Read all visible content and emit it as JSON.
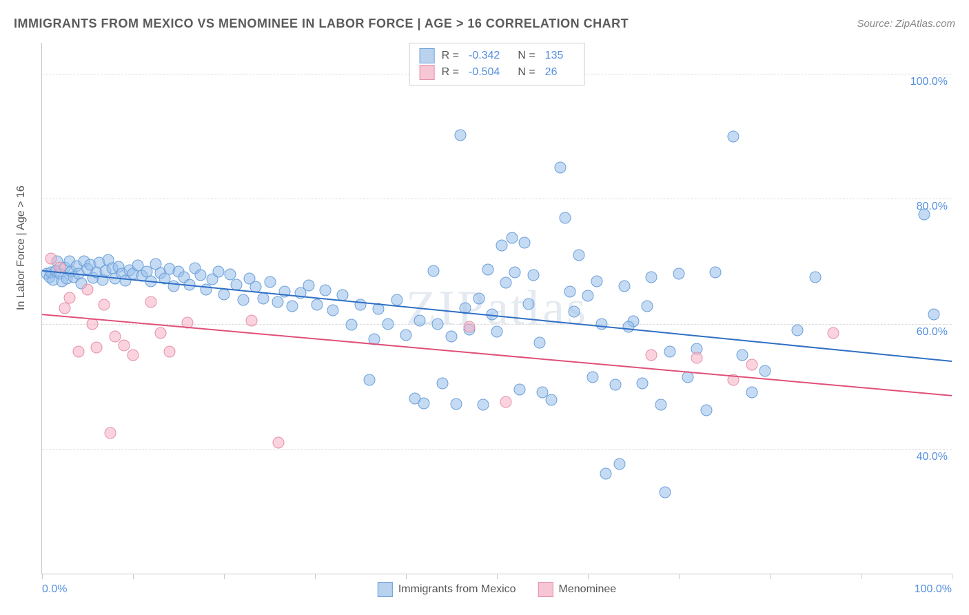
{
  "title": "IMMIGRANTS FROM MEXICO VS MENOMINEE IN LABOR FORCE | AGE > 16 CORRELATION CHART",
  "source": "Source: ZipAtlas.com",
  "ylabel": "In Labor Force | Age > 16",
  "watermark": "ZIPatlas",
  "chart": {
    "type": "scatter",
    "xlim": [
      0,
      100
    ],
    "ylim": [
      20,
      105
    ],
    "ytick_values": [
      40,
      60,
      80,
      100
    ],
    "ytick_labels": [
      "40.0%",
      "60.0%",
      "80.0%",
      "100.0%"
    ],
    "xtick_values": [
      0,
      10,
      20,
      30,
      40,
      50,
      60,
      70,
      80,
      90,
      100
    ],
    "xtick_end_labels": {
      "0": "0.0%",
      "100": "100.0%"
    },
    "background_color": "#ffffff",
    "grid_color": "#dcdcdc",
    "axis_color": "#c8c8c8",
    "tick_label_color": "#558fe0",
    "series": [
      {
        "name": "Immigrants from Mexico",
        "marker_fill": "rgba(150,190,235,0.55)",
        "marker_stroke": "#6b9fd8",
        "marker_size": 15,
        "line_color": "#2f6fc4",
        "line_width": 2,
        "trend": {
          "x1": 0,
          "y1": 68.5,
          "x2": 100,
          "y2": 54
        },
        "R": "-0.342",
        "N": "135",
        "swatch_fill": "#b9d3ef",
        "swatch_stroke": "#6b9fd8",
        "points": [
          [
            0.5,
            68
          ],
          [
            0.8,
            67.5
          ],
          [
            1,
            68.2
          ],
          [
            1.2,
            67
          ],
          [
            1.5,
            68.5
          ],
          [
            1.7,
            70
          ],
          [
            2,
            68
          ],
          [
            2.2,
            66.8
          ],
          [
            2.5,
            69
          ],
          [
            2.7,
            67.2
          ],
          [
            3,
            70.0
          ],
          [
            3.2,
            68.3
          ],
          [
            3.5,
            67.5
          ],
          [
            3.8,
            69.2
          ],
          [
            4,
            68
          ],
          [
            4.3,
            66.5
          ],
          [
            4.6,
            70
          ],
          [
            5,
            68.8
          ],
          [
            5.3,
            69.5
          ],
          [
            5.6,
            67.4
          ],
          [
            6,
            68.2
          ],
          [
            6.3,
            69.8
          ],
          [
            6.7,
            67
          ],
          [
            7,
            68.5
          ],
          [
            7.3,
            70.2
          ],
          [
            7.7,
            68.9
          ],
          [
            8,
            67.3
          ],
          [
            8.4,
            69.1
          ],
          [
            8.8,
            68
          ],
          [
            9.2,
            66.9
          ],
          [
            9.6,
            68.6
          ],
          [
            10,
            68
          ],
          [
            10.5,
            69.3
          ],
          [
            11,
            67.7
          ],
          [
            11.5,
            68.4
          ],
          [
            12,
            66.8
          ],
          [
            12.5,
            69.6
          ],
          [
            13,
            68.1
          ],
          [
            13.5,
            67.2
          ],
          [
            14,
            68.8
          ],
          [
            14.5,
            66.0
          ],
          [
            15,
            68.3
          ],
          [
            15.6,
            67.5
          ],
          [
            16.2,
            66.2
          ],
          [
            16.8,
            68.9
          ],
          [
            17.4,
            67.8
          ],
          [
            18,
            65.5
          ],
          [
            18.7,
            67.1
          ],
          [
            19.4,
            68.4
          ],
          [
            20,
            64.7
          ],
          [
            20.7,
            67.9
          ],
          [
            21.4,
            66.3
          ],
          [
            22.1,
            63.8
          ],
          [
            22.8,
            67.2
          ],
          [
            23.5,
            65.9
          ],
          [
            24.3,
            64.0
          ],
          [
            25.1,
            66.7
          ],
          [
            25.9,
            63.5
          ],
          [
            26.7,
            65.2
          ],
          [
            27.5,
            62.8
          ],
          [
            28.4,
            64.9
          ],
          [
            29.3,
            66.1
          ],
          [
            30.2,
            63.0
          ],
          [
            31.1,
            65.4
          ],
          [
            32,
            62.2
          ],
          [
            33,
            64.6
          ],
          [
            34,
            59.8
          ],
          [
            35,
            63.1
          ],
          [
            36,
            51.0
          ],
          [
            36.5,
            57.5
          ],
          [
            37,
            62.4
          ],
          [
            38,
            60.0
          ],
          [
            39,
            63.8
          ],
          [
            40,
            58.2
          ],
          [
            41,
            48.0
          ],
          [
            41.5,
            60.5
          ],
          [
            42,
            47.3
          ],
          [
            43,
            68.5
          ],
          [
            43.5,
            60
          ],
          [
            44,
            50.5
          ],
          [
            45,
            58.0
          ],
          [
            45.5,
            47.2
          ],
          [
            46,
            90.2
          ],
          [
            46.5,
            62.5
          ],
          [
            47,
            59.1
          ],
          [
            48,
            64.0
          ],
          [
            48.5,
            47.0
          ],
          [
            49,
            68.7
          ],
          [
            49.5,
            61.5
          ],
          [
            50,
            58.8
          ],
          [
            50.5,
            72.5
          ],
          [
            51,
            66.6
          ],
          [
            51.7,
            73.8
          ],
          [
            52,
            68.2
          ],
          [
            52.5,
            49.5
          ],
          [
            53,
            73.0
          ],
          [
            53.5,
            63.2
          ],
          [
            54,
            67.8
          ],
          [
            54.7,
            57.0
          ],
          [
            55,
            49.0
          ],
          [
            56,
            47.8
          ],
          [
            57,
            85.0
          ],
          [
            57.5,
            77.0
          ],
          [
            58,
            65.1
          ],
          [
            58.5,
            62.0
          ],
          [
            59,
            71.0
          ],
          [
            60,
            64.5
          ],
          [
            60.5,
            51.5
          ],
          [
            61,
            66.8
          ],
          [
            61.5,
            60.0
          ],
          [
            62,
            36.0
          ],
          [
            63,
            50.2
          ],
          [
            63.5,
            37.5
          ],
          [
            64,
            66.0
          ],
          [
            65,
            60.4
          ],
          [
            66,
            50.5
          ],
          [
            66.5,
            62.8
          ],
          [
            67,
            67.5
          ],
          [
            68,
            47.0
          ],
          [
            68.5,
            33.0
          ],
          [
            69,
            55.5
          ],
          [
            70,
            68.0
          ],
          [
            71,
            51.5
          ],
          [
            72,
            56.0
          ],
          [
            73,
            46.2
          ],
          [
            74,
            68.2
          ],
          [
            76,
            90.0
          ],
          [
            77,
            55.0
          ],
          [
            78,
            49.0
          ],
          [
            79.5,
            52.5
          ],
          [
            83,
            59.0
          ],
          [
            85,
            67.5
          ],
          [
            97,
            77.5
          ],
          [
            98,
            61.5
          ],
          [
            64.5,
            59.5
          ]
        ]
      },
      {
        "name": "Menominee",
        "marker_fill": "rgba(245,175,195,0.55)",
        "marker_stroke": "#e490a8",
        "marker_size": 15,
        "line_color": "#e05078",
        "line_width": 2,
        "trend": {
          "x1": 0,
          "y1": 61.5,
          "x2": 100,
          "y2": 48.5
        },
        "R": "-0.504",
        "N": "26",
        "swatch_fill": "#f6c6d4",
        "swatch_stroke": "#e490a8",
        "points": [
          [
            1,
            70.5
          ],
          [
            2,
            69
          ],
          [
            2.5,
            62.5
          ],
          [
            3,
            64.2
          ],
          [
            4,
            55.5
          ],
          [
            5,
            65.5
          ],
          [
            5.5,
            60.0
          ],
          [
            6,
            56.2
          ],
          [
            6.8,
            63.0
          ],
          [
            7.5,
            42.5
          ],
          [
            8,
            58.0
          ],
          [
            9,
            56.5
          ],
          [
            10,
            55.0
          ],
          [
            12,
            63.5
          ],
          [
            13,
            58.5
          ],
          [
            14,
            55.5
          ],
          [
            16,
            60.2
          ],
          [
            23,
            60.5
          ],
          [
            26,
            41.0
          ],
          [
            47,
            59.5
          ],
          [
            51,
            47.5
          ],
          [
            67,
            55.0
          ],
          [
            72,
            54.5
          ],
          [
            76,
            51.0
          ],
          [
            78,
            53.5
          ],
          [
            87,
            58.5
          ]
        ]
      }
    ]
  },
  "legend_top": {
    "r_label": "R =",
    "n_label": "N ="
  },
  "legend_bottom_labels": [
    "Immigrants from Mexico",
    "Menominee"
  ]
}
